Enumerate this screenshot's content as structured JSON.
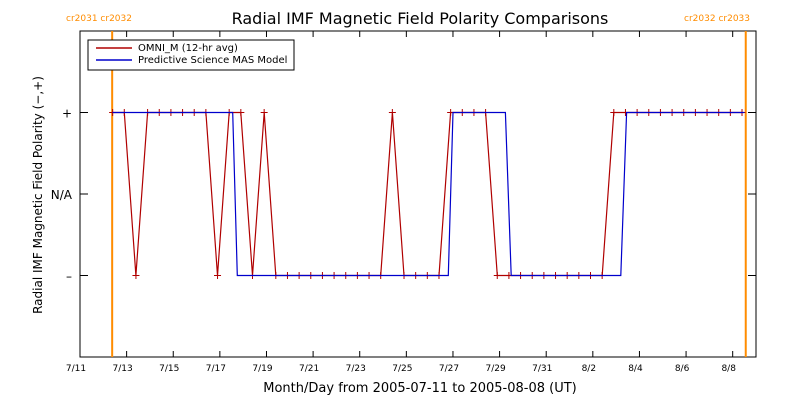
{
  "chart_data": {
    "type": "line",
    "title": "Radial IMF Magnetic Field Polarity Comparisons",
    "xlabel": "Month/Day from 2005-07-11 to 2005-08-08 (UT)",
    "ylabel": "Radial IMF Magnetic Field Polarity (−,+)",
    "x_start_date": "2005-07-11",
    "xlim_days": [
      0,
      29
    ],
    "x_ticks": [
      {
        "day": 0,
        "label": "7/11"
      },
      {
        "day": 2,
        "label": "7/13"
      },
      {
        "day": 4,
        "label": "7/15"
      },
      {
        "day": 6,
        "label": "7/17"
      },
      {
        "day": 8,
        "label": "7/19"
      },
      {
        "day": 10,
        "label": "7/21"
      },
      {
        "day": 12,
        "label": "7/23"
      },
      {
        "day": 14,
        "label": "7/25"
      },
      {
        "day": 16,
        "label": "7/27"
      },
      {
        "day": 18,
        "label": "7/29"
      },
      {
        "day": 20,
        "label": "7/31"
      },
      {
        "day": 22,
        "label": "8/2"
      },
      {
        "day": 24,
        "label": "8/4"
      },
      {
        "day": 26,
        "label": "8/6"
      },
      {
        "day": 28,
        "label": "8/8"
      }
    ],
    "ylim": [
      -2,
      2
    ],
    "y_ticks": [
      {
        "value": 1,
        "label": "+"
      },
      {
        "value": 0,
        "label": "N/A"
      },
      {
        "value": -1,
        "label": "–"
      }
    ],
    "carrington_markers": [
      {
        "day": 1.38,
        "labels": [
          "cr2031",
          "cr2032"
        ],
        "side": "left",
        "color": "#ff8c00"
      },
      {
        "day": 28.56,
        "labels": [
          "cr2032",
          "cr2033"
        ],
        "side": "right",
        "color": "#ff8c00"
      }
    ],
    "legend": {
      "position": "top-left"
    },
    "grid": false,
    "series": [
      {
        "name": "OMNI_M (12-hr avg)",
        "color": "#b00000",
        "markers": "plus",
        "x": [
          1.4,
          1.9,
          2.4,
          2.9,
          3.4,
          3.9,
          4.4,
          4.9,
          5.4,
          5.9,
          6.4,
          6.9,
          7.4,
          7.9,
          8.4,
          8.9,
          9.4,
          9.9,
          10.4,
          10.9,
          11.4,
          11.9,
          12.4,
          12.9,
          13.4,
          13.9,
          14.4,
          14.9,
          15.4,
          15.9,
          16.4,
          16.9,
          17.4,
          17.9,
          18.4,
          18.9,
          19.4,
          19.9,
          20.4,
          20.9,
          21.4,
          21.9,
          22.4,
          22.9,
          23.4,
          23.9,
          24.4,
          24.9,
          25.4,
          25.9,
          26.4,
          26.9,
          27.4,
          27.9,
          28.4
        ],
        "y": [
          1,
          1,
          -1,
          1,
          1,
          1,
          1,
          1,
          1,
          -1,
          1,
          1,
          -1,
          1,
          -1,
          -1,
          -1,
          -1,
          -1,
          -1,
          -1,
          -1,
          -1,
          -1,
          1,
          -1,
          -1,
          -1,
          -1,
          1,
          1,
          1,
          1,
          -1,
          -1,
          -1,
          -1,
          -1,
          -1,
          -1,
          -1,
          -1,
          -1,
          1,
          1,
          1,
          1,
          1,
          1,
          1,
          1,
          1,
          1,
          1,
          1
        ]
      },
      {
        "name": "Predictive Science MAS Model",
        "color": "#0000cc",
        "markers": "none",
        "x": [
          1.4,
          6.55,
          6.75,
          15.8,
          16.0,
          18.25,
          18.5,
          23.2,
          23.45,
          28.5
        ],
        "y": [
          1,
          1,
          -1,
          -1,
          1,
          1,
          -1,
          -1,
          1,
          1
        ]
      }
    ]
  }
}
